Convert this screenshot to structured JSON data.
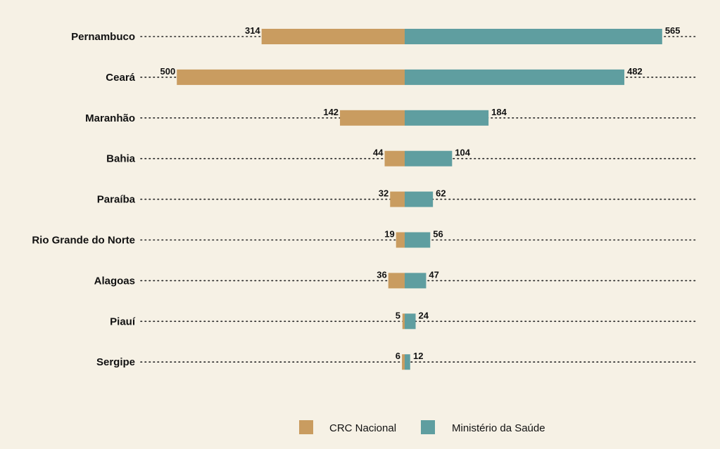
{
  "chart_data": {
    "type": "bar",
    "orientation": "horizontal-diverging",
    "categories": [
      "Pernambuco",
      "Ceará",
      "Maranhão",
      "Bahia",
      "Paraíba",
      "Rio Grande do Norte",
      "Alagoas",
      "Piauí",
      "Sergipe"
    ],
    "series": [
      {
        "name": "CRC Nacional",
        "color": "#c99c60",
        "direction": "left",
        "values": [
          314,
          500,
          142,
          44,
          32,
          19,
          36,
          5,
          6
        ]
      },
      {
        "name": "Ministério da Saúde",
        "color": "#5f9ea0",
        "direction": "right",
        "values": [
          565,
          482,
          184,
          104,
          62,
          56,
          47,
          24,
          12
        ]
      }
    ],
    "title": "",
    "xlabel": "",
    "ylabel": "",
    "grid": "dotted horizontal lines per category",
    "legend_position": "bottom"
  }
}
